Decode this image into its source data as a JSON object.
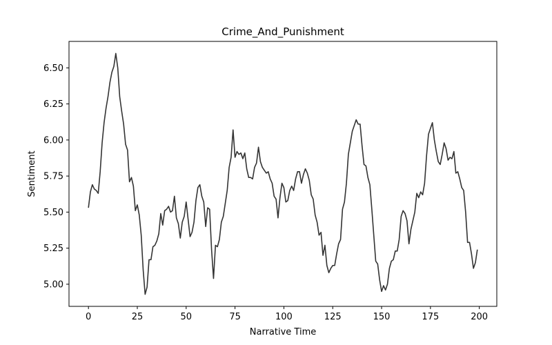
{
  "chart_data": {
    "type": "line",
    "title": "Crime_And_Punishment",
    "xlabel": "Narrative Time",
    "ylabel": "Sentiment",
    "x": [
      0,
      1,
      2,
      3,
      4,
      5,
      6,
      7,
      8,
      9,
      10,
      11,
      12,
      13,
      14,
      15,
      16,
      17,
      18,
      19,
      20,
      21,
      22,
      23,
      24,
      25,
      26,
      27,
      28,
      29,
      30,
      31,
      32,
      33,
      34,
      35,
      36,
      37,
      38,
      39,
      40,
      41,
      42,
      43,
      44,
      45,
      46,
      47,
      48,
      49,
      50,
      51,
      52,
      53,
      54,
      55,
      56,
      57,
      58,
      59,
      60,
      61,
      62,
      63,
      64,
      65,
      66,
      67,
      68,
      69,
      70,
      71,
      72,
      73,
      74,
      75,
      76,
      77,
      78,
      79,
      80,
      81,
      82,
      83,
      84,
      85,
      86,
      87,
      88,
      89,
      90,
      91,
      92,
      93,
      94,
      95,
      96,
      97,
      98,
      99,
      100,
      101,
      102,
      103,
      104,
      105,
      106,
      107,
      108,
      109,
      110,
      111,
      112,
      113,
      114,
      115,
      116,
      117,
      118,
      119,
      120,
      121,
      122,
      123,
      124,
      125,
      126,
      127,
      128,
      129,
      130,
      131,
      132,
      133,
      134,
      135,
      136,
      137,
      138,
      139,
      140,
      141,
      142,
      143,
      144,
      145,
      146,
      147,
      148,
      149,
      150,
      151,
      152,
      153,
      154,
      155,
      156,
      157,
      158,
      159,
      160,
      161,
      162,
      163,
      164,
      165,
      166,
      167,
      168,
      169,
      170,
      171,
      172,
      173,
      174,
      175,
      176,
      177,
      178,
      179,
      180,
      181,
      182,
      183,
      184,
      185,
      186,
      187,
      188,
      189,
      190,
      191,
      192,
      193,
      194,
      195,
      196,
      197,
      198,
      199
    ],
    "series": [
      {
        "name": "Sentiment",
        "color": "#333333",
        "values": [
          5.53,
          5.64,
          5.69,
          5.66,
          5.65,
          5.63,
          5.78,
          5.98,
          6.12,
          6.22,
          6.3,
          6.4,
          6.47,
          6.51,
          6.6,
          6.5,
          6.3,
          6.2,
          6.11,
          5.97,
          5.93,
          5.71,
          5.74,
          5.68,
          5.51,
          5.55,
          5.48,
          5.34,
          5.1,
          4.93,
          4.98,
          5.17,
          5.17,
          5.26,
          5.27,
          5.3,
          5.35,
          5.49,
          5.41,
          5.51,
          5.52,
          5.54,
          5.5,
          5.51,
          5.61,
          5.46,
          5.42,
          5.32,
          5.43,
          5.47,
          5.57,
          5.45,
          5.33,
          5.36,
          5.43,
          5.58,
          5.67,
          5.69,
          5.61,
          5.57,
          5.4,
          5.53,
          5.52,
          5.24,
          5.04,
          5.27,
          5.26,
          5.31,
          5.43,
          5.47,
          5.56,
          5.65,
          5.81,
          5.88,
          6.07,
          5.88,
          5.92,
          5.9,
          5.91,
          5.87,
          5.91,
          5.8,
          5.74,
          5.74,
          5.73,
          5.81,
          5.84,
          5.95,
          5.85,
          5.81,
          5.79,
          5.77,
          5.78,
          5.73,
          5.7,
          5.61,
          5.59,
          5.46,
          5.6,
          5.7,
          5.67,
          5.57,
          5.58,
          5.65,
          5.68,
          5.65,
          5.73,
          5.78,
          5.78,
          5.7,
          5.76,
          5.8,
          5.77,
          5.72,
          5.62,
          5.59,
          5.48,
          5.43,
          5.34,
          5.36,
          5.2,
          5.27,
          5.13,
          5.08,
          5.11,
          5.13,
          5.13,
          5.21,
          5.28,
          5.31,
          5.52,
          5.57,
          5.7,
          5.9,
          5.98,
          6.06,
          6.1,
          6.14,
          6.11,
          6.11,
          5.96,
          5.83,
          5.82,
          5.74,
          5.69,
          5.52,
          5.34,
          5.16,
          5.14,
          5.03,
          4.95,
          4.99,
          4.96,
          5.0,
          5.11,
          5.16,
          5.17,
          5.23,
          5.23,
          5.31,
          5.47,
          5.51,
          5.49,
          5.44,
          5.28,
          5.38,
          5.44,
          5.5,
          5.63,
          5.6,
          5.64,
          5.62,
          5.7,
          5.89,
          6.04,
          6.08,
          6.12,
          6.0,
          5.92,
          5.85,
          5.83,
          5.9,
          5.98,
          5.94,
          5.86,
          5.88,
          5.87,
          5.92,
          5.77,
          5.78,
          5.73,
          5.67,
          5.65,
          5.5,
          5.29,
          5.29,
          5.21,
          5.11,
          5.15,
          5.24
        ]
      }
    ],
    "xlim": [
      -9.95,
      208.95
    ],
    "xticks": [
      0,
      25,
      50,
      75,
      100,
      125,
      150,
      175,
      200
    ],
    "ylim": [
      4.8465,
      6.6835
    ],
    "yticks": [
      {
        "value": 5,
        "label": "5.00"
      },
      5.25,
      {
        "value": 5.5,
        "label": "5.50"
      },
      5.75,
      {
        "value": 6,
        "label": "6.00"
      },
      6.25,
      {
        "value": 6.5,
        "label": "6.50"
      }
    ],
    "grid": false
  }
}
